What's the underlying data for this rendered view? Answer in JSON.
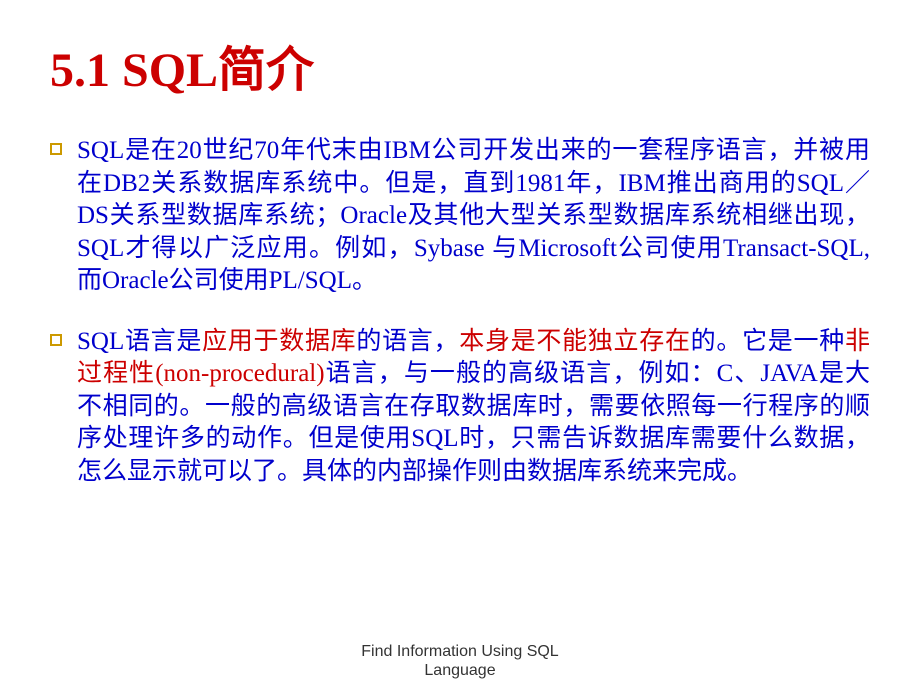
{
  "slide": {
    "title": "5.1  SQL简介",
    "title_color": "#cc0000",
    "text_color": "#0000cc",
    "highlight_color": "#cc0000",
    "bullet_border_color": "#cc9900",
    "background_color": "#ffffff",
    "title_fontsize": 48,
    "body_fontsize": 25,
    "footer_fontsize": 16,
    "bullets": [
      {
        "segments": [
          {
            "text": "SQL是在20世纪70年代末由IBM公司开发出来的一套程序语言，并被用在DB2关系数据库系统中。但是，直到1981年，IBM推出商用的SQL／DS关系型数据库系统；Oracle及其他大型关系型数据库系统相继出现，SQL才得以广泛应用。例如，Sybase 与Microsoft公司使用Transact-SQL,而Oracle公司使用PL/SQL。",
            "color": "blue"
          }
        ]
      },
      {
        "segments": [
          {
            "text": "SQL语言是",
            "color": "blue"
          },
          {
            "text": "应用于数据库",
            "color": "red"
          },
          {
            "text": "的语言，",
            "color": "blue"
          },
          {
            "text": "本身是不能独立存在",
            "color": "red"
          },
          {
            "text": "的。它是一种",
            "color": "blue"
          },
          {
            "text": "非过程性(non-procedural)",
            "color": "red"
          },
          {
            "text": "语言，与一般的高级语言，例如：C、JAVA是大不相同的。一般的高级语言在存取数据库时，需要依照每一行程序的顺序处理许多的动作。但是使用SQL时，只需告诉数据库需要什么数据，怎么显示就可以了。具体的内部操作则由数据库系统来完成。",
            "color": "blue"
          }
        ]
      }
    ],
    "footer_line1": "Find Information Using SQL",
    "footer_line2": "Language"
  }
}
